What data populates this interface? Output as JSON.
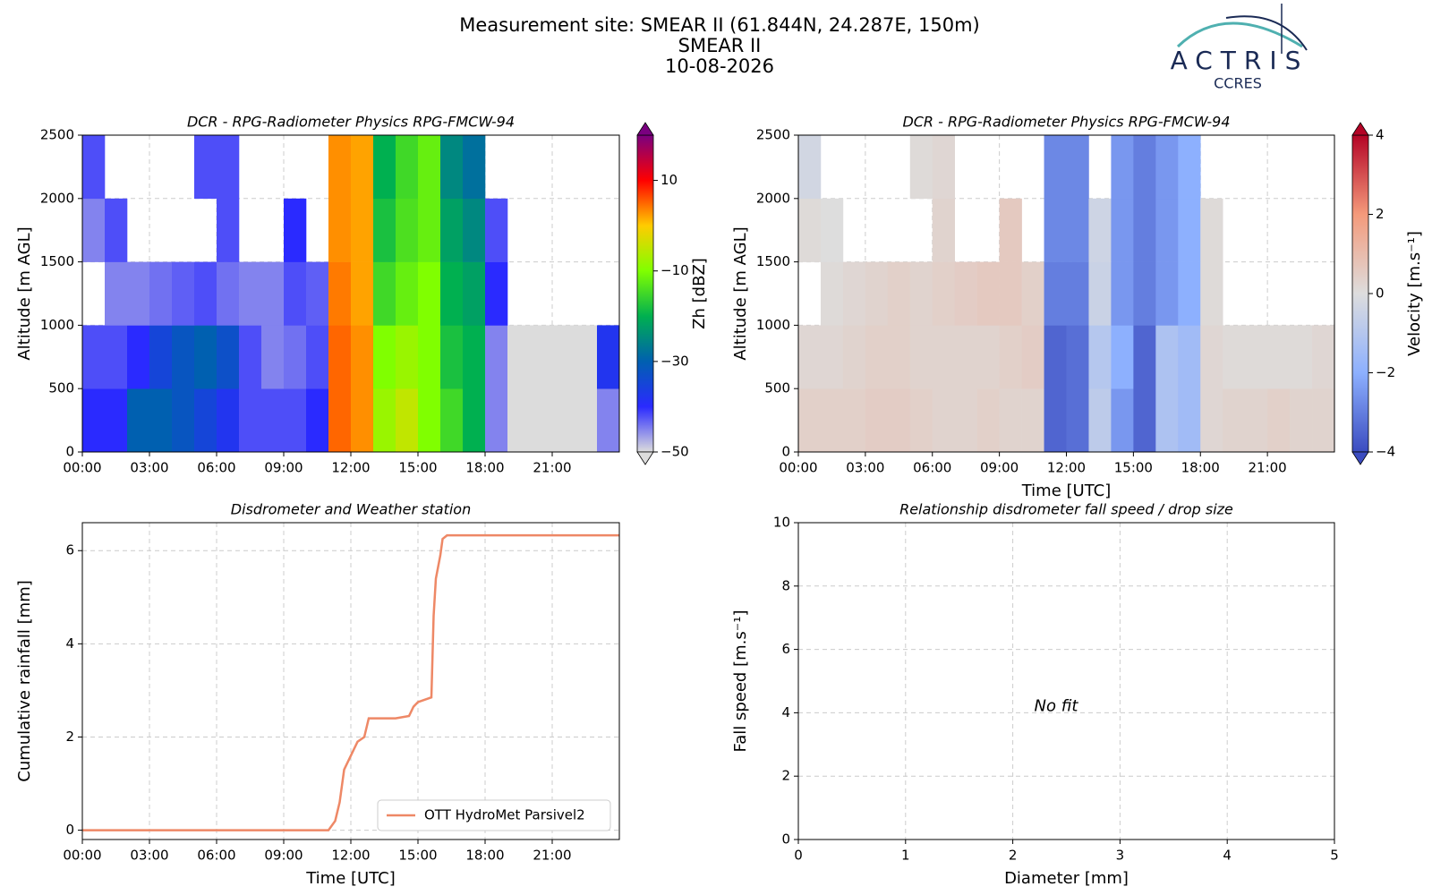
{
  "header": {
    "lines": [
      "Measurement site: SMEAR II (61.844N, 24.287E, 150m)",
      "SMEAR II",
      "10-08-2026"
    ]
  },
  "logo": {
    "name": "ACTRIS",
    "sub": "CCRES"
  },
  "chart_data": [
    {
      "type": "heatmap",
      "title": "DCR - RPG-Radiometer Physics RPG-FMCW-94",
      "ylabel": "Altitude [m AGL]",
      "xlim": [
        0,
        24
      ],
      "xticks": [
        {
          "value": 0,
          "label": "00:00"
        },
        {
          "value": 3,
          "label": "03:00"
        },
        {
          "value": 6,
          "label": "06:00"
        },
        {
          "value": 9,
          "label": "09:00"
        },
        {
          "value": 12,
          "label": "12:00"
        },
        {
          "value": 15,
          "label": "15:00"
        },
        {
          "value": 18,
          "label": "18:00"
        },
        {
          "value": 21,
          "label": "21:00"
        }
      ],
      "ylim": [
        0,
        2500
      ],
      "yticks": [
        0,
        500,
        1000,
        1500,
        2000,
        2500
      ],
      "grid": true,
      "x_bins": [
        0,
        1,
        2,
        3,
        4,
        5,
        6,
        7,
        8,
        9,
        10,
        11,
        12,
        13,
        14,
        15,
        16,
        17,
        18,
        19,
        20,
        21,
        22,
        23,
        24
      ],
      "y_bins": [
        0,
        500,
        1000,
        1500,
        2000,
        2500
      ],
      "z": [
        [
          -40,
          -40,
          -30,
          -30,
          -32,
          -35,
          -38,
          -42,
          -42,
          -42,
          -40,
          5,
          3,
          -8,
          -5,
          -10,
          -15,
          -20,
          -45,
          -50,
          -50,
          -50,
          -50,
          -45
        ],
        [
          -42,
          -42,
          -40,
          -35,
          -32,
          -30,
          -33,
          -42,
          -45,
          -44,
          -42,
          5,
          3,
          -10,
          -8,
          -10,
          -18,
          -20,
          -45,
          -50,
          -50,
          -50,
          -50,
          -38
        ],
        [
          null,
          -45,
          -45,
          -44,
          -43,
          -42,
          -44,
          -45,
          -45,
          -42,
          -43,
          4,
          2,
          -15,
          -12,
          -10,
          -20,
          -22,
          -40,
          null,
          null,
          null,
          null,
          null
        ],
        [
          -45,
          -42,
          null,
          null,
          null,
          null,
          -42,
          null,
          null,
          -40,
          null,
          3,
          2,
          -18,
          -14,
          -12,
          -22,
          -25,
          -42,
          null,
          null,
          null,
          null,
          null
        ],
        [
          -42,
          null,
          null,
          null,
          null,
          -42,
          -42,
          null,
          null,
          null,
          null,
          3,
          2,
          -20,
          -15,
          -12,
          -25,
          -28,
          null,
          null,
          null,
          null,
          null,
          null
        ]
      ],
      "clim": [
        -50,
        20
      ],
      "colormap": [
        "#dcdcdc",
        "#2a2aff",
        "#0060b0",
        "#00b050",
        "#80ff00",
        "#ffcc00",
        "#ff0000",
        "#7a0080"
      ],
      "colorbar_label": "Zh [dBZ]",
      "colorbar_ticks": [
        {
          "value": 10,
          "label": "10"
        },
        {
          "value": -10,
          "label": "−10"
        },
        {
          "value": -30,
          "label": "−30"
        },
        {
          "value": -50,
          "label": "−50"
        }
      ]
    },
    {
      "type": "heatmap",
      "title": "DCR - RPG-Radiometer Physics RPG-FMCW-94",
      "ylabel": "Altitude [m AGL]",
      "xlabel": "Time [UTC]",
      "xlim": [
        0,
        24
      ],
      "xticks": [
        {
          "value": 0,
          "label": "00:00"
        },
        {
          "value": 3,
          "label": "03:00"
        },
        {
          "value": 6,
          "label": "06:00"
        },
        {
          "value": 9,
          "label": "09:00"
        },
        {
          "value": 12,
          "label": "12:00"
        },
        {
          "value": 15,
          "label": "15:00"
        },
        {
          "value": 18,
          "label": "18:00"
        },
        {
          "value": 21,
          "label": "21:00"
        }
      ],
      "ylim": [
        0,
        2500
      ],
      "yticks": [
        0,
        500,
        1000,
        1500,
        2000,
        2500
      ],
      "grid": true,
      "x_bins": [
        0,
        1,
        2,
        3,
        4,
        5,
        6,
        7,
        8,
        9,
        10,
        11,
        12,
        13,
        14,
        15,
        16,
        17,
        18,
        19,
        20,
        21,
        22,
        23,
        24
      ],
      "y_bins": [
        0,
        500,
        1000,
        1500,
        2000,
        2500
      ],
      "z": [
        [
          0.4,
          0.4,
          0.4,
          0.5,
          0.5,
          0.4,
          0.3,
          0.3,
          0.4,
          0.3,
          0.3,
          -3.5,
          -3.3,
          -0.8,
          -2.5,
          -3.5,
          -1.2,
          -1.5,
          0.2,
          0.3,
          0.3,
          0.4,
          0.3,
          0.3
        ],
        [
          0.2,
          0.2,
          0.3,
          0.4,
          0.4,
          0.3,
          0.3,
          0.3,
          0.3,
          0.4,
          0.5,
          -3.5,
          -3.3,
          -1,
          -2,
          -3.5,
          -1.2,
          -1.5,
          0.2,
          0.1,
          0.1,
          0.1,
          0.1,
          0.2
        ],
        [
          null,
          0.1,
          0.2,
          0.3,
          0.4,
          0.3,
          0.4,
          0.5,
          0.6,
          0.6,
          0.4,
          -3,
          -3,
          -0.5,
          -2.5,
          -3,
          -2.5,
          -2,
          0.1,
          null,
          null,
          null,
          null,
          null
        ],
        [
          0.1,
          0,
          null,
          null,
          null,
          null,
          0.3,
          null,
          null,
          0.6,
          null,
          -2.8,
          -2.8,
          -0.4,
          -2.5,
          -3,
          -2.5,
          -2,
          0.1,
          null,
          null,
          null,
          null,
          null
        ],
        [
          -0.3,
          null,
          null,
          null,
          null,
          0.1,
          0.2,
          null,
          null,
          null,
          null,
          -2.8,
          -2.8,
          null,
          -2.5,
          -3,
          -2.5,
          -2,
          null,
          null,
          null,
          null,
          null,
          null
        ]
      ],
      "clim": [
        -4,
        4
      ],
      "colormap": [
        "#3b4cc0",
        "#8db0fe",
        "#dddddd",
        "#f49a7b",
        "#b40426"
      ],
      "colorbar_label": "Velocity [m.s⁻¹]",
      "colorbar_ticks": [
        4,
        2,
        0,
        {
          "value": -2,
          "label": "−2"
        },
        {
          "value": -4,
          "label": "−4"
        }
      ]
    },
    {
      "type": "line",
      "title": "Disdrometer and Weather station",
      "ylabel": "Cumulative rainfall [mm]",
      "xlabel": "Time [UTC]",
      "xlim": [
        0,
        24
      ],
      "xticks": [
        {
          "value": 0,
          "label": "00:00"
        },
        {
          "value": 3,
          "label": "03:00"
        },
        {
          "value": 6,
          "label": "06:00"
        },
        {
          "value": 9,
          "label": "09:00"
        },
        {
          "value": 12,
          "label": "12:00"
        },
        {
          "value": 15,
          "label": "15:00"
        },
        {
          "value": 18,
          "label": "18:00"
        },
        {
          "value": 21,
          "label": "21:00"
        }
      ],
      "ylim": [
        -0.2,
        6.6
      ],
      "yticks": [
        0,
        2,
        4,
        6
      ],
      "grid": true,
      "legend": "lower right",
      "x": [
        0,
        11,
        11.3,
        11.5,
        11.7,
        12,
        12.3,
        12.6,
        12.8,
        13,
        14,
        14.6,
        14.8,
        15,
        15.6,
        15.7,
        15.8,
        16,
        16.1,
        16.3,
        17,
        24
      ],
      "series": [
        {
          "name": "OTT HydroMet Parsivel2",
          "color": "#ee8866",
          "values": [
            0,
            0,
            0.2,
            0.6,
            1.3,
            1.6,
            1.9,
            2.0,
            2.4,
            2.4,
            2.4,
            2.45,
            2.65,
            2.75,
            2.85,
            4.6,
            5.4,
            5.9,
            6.25,
            6.33,
            6.33,
            6.33
          ]
        }
      ]
    },
    {
      "type": "scatter",
      "title": "Relationship disdrometer fall speed / drop size",
      "ylabel": "Fall speed [m.s⁻¹]",
      "xlabel": "Diameter [mm]",
      "xlim": [
        0,
        5
      ],
      "xticks": [
        0,
        1,
        2,
        3,
        4,
        5
      ],
      "ylim": [
        0,
        10
      ],
      "yticks": [
        0,
        2,
        4,
        6,
        8,
        10
      ],
      "grid": true,
      "annotation": "No fit"
    }
  ]
}
